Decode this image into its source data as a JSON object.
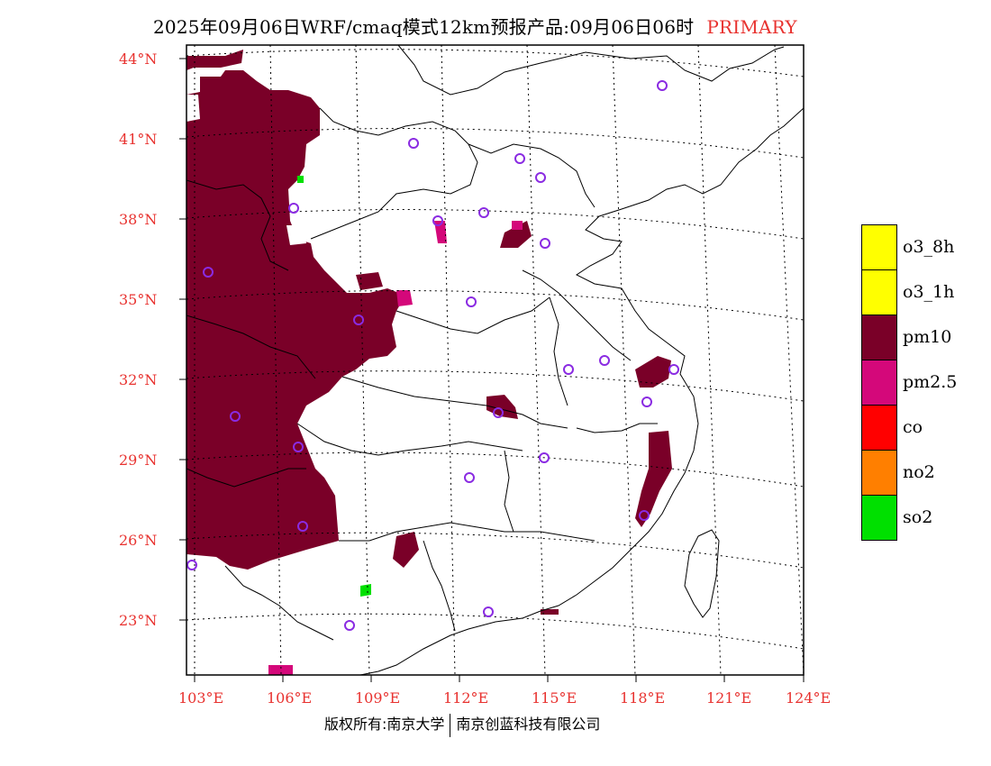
{
  "title": {
    "main": "2025年09月06日WRF/cmaq模式12km预报产品:09月06日06时",
    "variable": "PRIMARY"
  },
  "axes": {
    "lat_labels": [
      "44°N",
      "41°N",
      "38°N",
      "35°N",
      "32°N",
      "29°N",
      "26°N",
      "23°N"
    ],
    "lon_labels": [
      "103°E",
      "106°E",
      "109°E",
      "112°E",
      "115°E",
      "118°E",
      "121°E",
      "124°E"
    ],
    "lat_range": [
      21,
      44.5
    ],
    "lon_range": [
      103,
      124
    ]
  },
  "legend": {
    "items": [
      {
        "label": "o3_8h",
        "color": "#ffff00"
      },
      {
        "label": "o3_1h",
        "color": "#ffff00"
      },
      {
        "label": "pm10",
        "color": "#7a0028"
      },
      {
        "label": "pm2.5",
        "color": "#d4087a"
      },
      {
        "label": "co",
        "color": "#ff0000"
      },
      {
        "label": "no2",
        "color": "#ff7f00"
      },
      {
        "label": "so2",
        "color": "#00e000"
      }
    ]
  },
  "copyright": {
    "left": "版权所有:南京大学",
    "right": "南京创蓝科技有限公司"
  },
  "colors": {
    "pm10": "#7a0028",
    "pm25": "#d4087a",
    "station": "#8a2be2",
    "label_red": "#e8322f"
  }
}
